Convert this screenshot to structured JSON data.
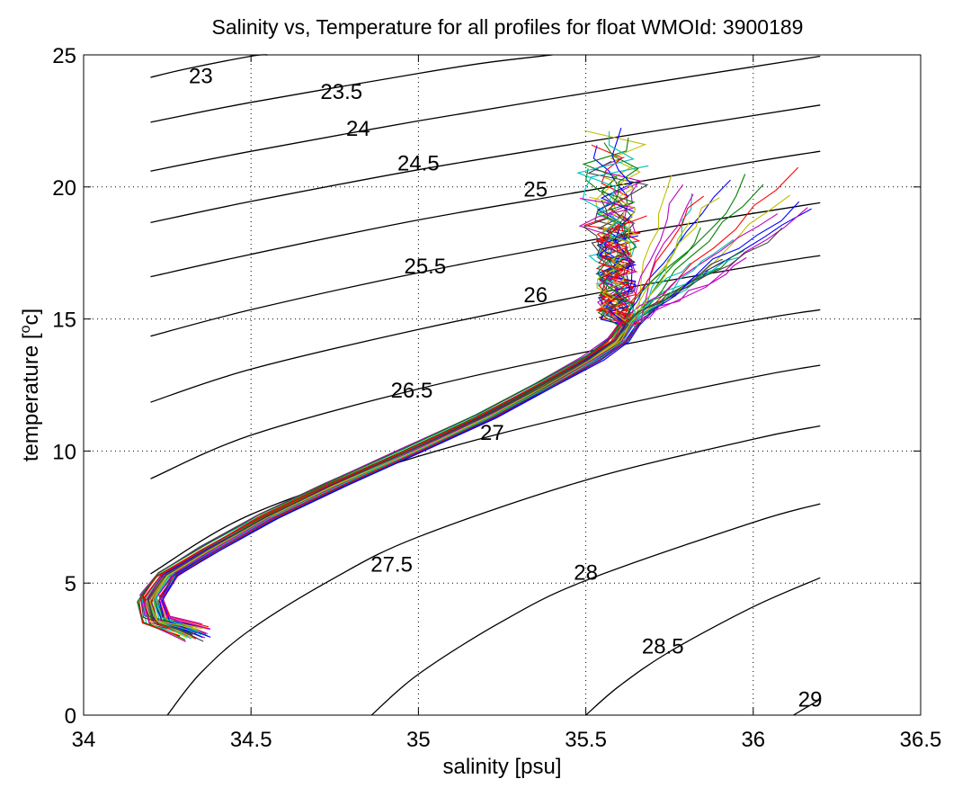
{
  "chart_data": {
    "type": "line",
    "title": "Salinity vs, Temperature for all profiles for float WMOId: 3900189",
    "xlabel": "salinity [psu]",
    "ylabel_main": "temperature [",
    "ylabel_sup": "o",
    "ylabel_end": "c]",
    "xlim": [
      34,
      36.5
    ],
    "ylim": [
      0,
      25
    ],
    "x_ticks": [
      {
        "value": 34,
        "label": "34"
      },
      {
        "value": 34.5,
        "label": "34.5"
      },
      {
        "value": 35,
        "label": "35"
      },
      {
        "value": 35.5,
        "label": "35.5"
      },
      {
        "value": 36,
        "label": "36"
      },
      {
        "value": 36.5,
        "label": "36.5"
      }
    ],
    "y_ticks": [
      {
        "value": 0,
        "label": "0"
      },
      {
        "value": 5,
        "label": "5"
      },
      {
        "value": 10,
        "label": "10"
      },
      {
        "value": 15,
        "label": "15"
      },
      {
        "value": 20,
        "label": "20"
      },
      {
        "value": 25,
        "label": "25"
      }
    ],
    "grid": "dotted",
    "density_contours": [
      {
        "label": "23",
        "label_x": 34.35,
        "label_y": 24.2,
        "points": [
          [
            34.2,
            24.15
          ],
          [
            34.3,
            24.45
          ],
          [
            34.5,
            24.95
          ],
          [
            34.55,
            25.0
          ]
        ]
      },
      {
        "label": "23.5",
        "label_x": 34.77,
        "label_y": 23.6,
        "points": [
          [
            34.2,
            22.45
          ],
          [
            34.5,
            23.2
          ],
          [
            35.0,
            24.3
          ],
          [
            35.2,
            24.7
          ],
          [
            35.4,
            25.0
          ]
        ]
      },
      {
        "label": "24",
        "label_x": 34.82,
        "label_y": 22.2,
        "points": [
          [
            34.2,
            20.6
          ],
          [
            34.5,
            21.35
          ],
          [
            35.0,
            22.5
          ],
          [
            35.5,
            23.55
          ],
          [
            36.0,
            24.55
          ],
          [
            36.2,
            24.95
          ]
        ]
      },
      {
        "label": "24.5",
        "label_x": 35.0,
        "label_y": 20.9,
        "points": [
          [
            34.2,
            18.65
          ],
          [
            34.5,
            19.45
          ],
          [
            35.0,
            20.65
          ],
          [
            35.5,
            21.7
          ],
          [
            36.0,
            22.7
          ],
          [
            36.2,
            23.1
          ]
        ]
      },
      {
        "label": "25",
        "label_x": 35.35,
        "label_y": 19.9,
        "points": [
          [
            34.2,
            16.6
          ],
          [
            34.5,
            17.45
          ],
          [
            35.0,
            18.75
          ],
          [
            35.5,
            19.85
          ],
          [
            36.0,
            20.95
          ],
          [
            36.2,
            21.35
          ]
        ]
      },
      {
        "label": "25.5",
        "label_x": 35.02,
        "label_y": 17.0,
        "points": [
          [
            34.2,
            14.35
          ],
          [
            34.5,
            15.35
          ],
          [
            35.0,
            16.75
          ],
          [
            35.5,
            17.95
          ],
          [
            36.0,
            19.0
          ],
          [
            36.2,
            19.4
          ]
        ]
      },
      {
        "label": "26",
        "label_x": 35.35,
        "label_y": 15.9,
        "points": [
          [
            34.2,
            11.85
          ],
          [
            34.5,
            13.1
          ],
          [
            35.0,
            14.6
          ],
          [
            35.5,
            15.9
          ],
          [
            36.0,
            17.0
          ],
          [
            36.2,
            17.4
          ]
        ]
      },
      {
        "label": "26.5",
        "label_x": 34.98,
        "label_y": 12.3,
        "points": [
          [
            34.2,
            8.95
          ],
          [
            34.5,
            10.6
          ],
          [
            35.0,
            12.35
          ],
          [
            35.5,
            13.75
          ],
          [
            36.0,
            14.95
          ],
          [
            36.2,
            15.35
          ]
        ]
      },
      {
        "label": "27",
        "label_x": 35.22,
        "label_y": 10.7,
        "points": [
          [
            34.2,
            5.35
          ],
          [
            34.5,
            7.6
          ],
          [
            35.0,
            9.8
          ],
          [
            35.5,
            11.45
          ],
          [
            36.0,
            12.8
          ],
          [
            36.2,
            13.25
          ]
        ]
      },
      {
        "label": "27.5",
        "label_x": 34.92,
        "label_y": 5.7,
        "points": [
          [
            34.25,
            0.0
          ],
          [
            34.35,
            1.6
          ],
          [
            34.5,
            3.25
          ],
          [
            34.75,
            5.2
          ],
          [
            35.0,
            6.75
          ],
          [
            35.5,
            8.9
          ],
          [
            36.0,
            10.45
          ],
          [
            36.2,
            10.95
          ]
        ]
      },
      {
        "label": "28",
        "label_x": 35.5,
        "label_y": 5.4,
        "points": [
          [
            34.86,
            0.0
          ],
          [
            35.0,
            1.55
          ],
          [
            35.25,
            3.55
          ],
          [
            35.5,
            5.1
          ],
          [
            36.0,
            7.3
          ],
          [
            36.2,
            8.0
          ]
        ]
      },
      {
        "label": "28.5",
        "label_x": 35.73,
        "label_y": 2.6,
        "points": [
          [
            35.5,
            0.0
          ],
          [
            35.6,
            1.1
          ],
          [
            35.75,
            2.4
          ],
          [
            36.0,
            4.1
          ],
          [
            36.2,
            5.2
          ]
        ]
      },
      {
        "label": "29",
        "label_x": 36.17,
        "label_y": 0.6,
        "points": [
          [
            36.12,
            0.0
          ],
          [
            36.2,
            0.6
          ]
        ]
      }
    ],
    "profile_colors": [
      "#0000ff",
      "#008000",
      "#ff0000",
      "#00bfbf",
      "#bf00bf",
      "#bfbf00",
      "#404040"
    ],
    "profile_count": 56,
    "profiles_bundle": {
      "note_free": true,
      "deep": [
        [
          34.35,
          3.1
        ],
        [
          34.25,
          4.5
        ],
        [
          34.4,
          6.0
        ],
        [
          34.7,
          8.0
        ],
        [
          35.0,
          10.0
        ],
        [
          35.3,
          12.0
        ],
        [
          35.55,
          13.8
        ],
        [
          35.62,
          14.7
        ]
      ],
      "mid_tip_pairs": [
        [
          35.62,
          15.0
        ],
        [
          35.7,
          16.0
        ],
        [
          35.8,
          17.0
        ],
        [
          35.9,
          18.0
        ]
      ]
    }
  }
}
